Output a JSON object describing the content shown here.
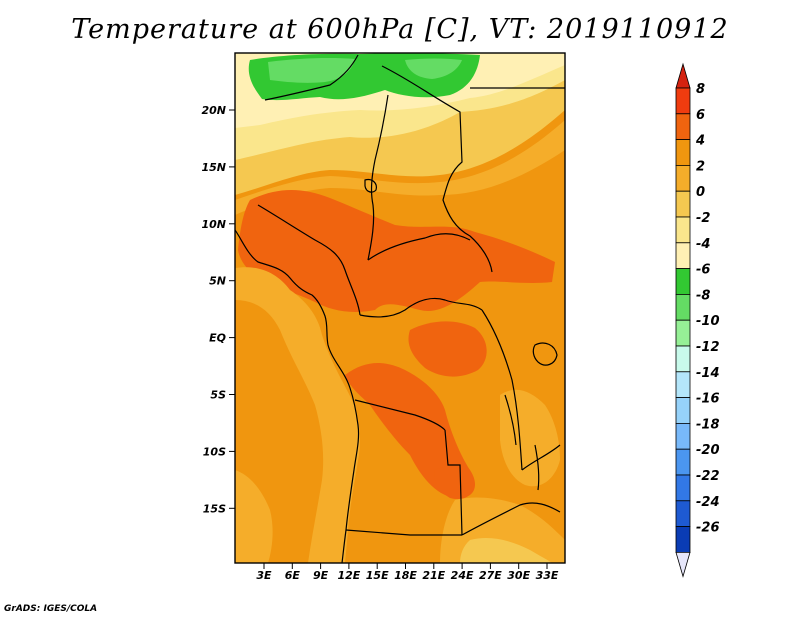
{
  "title": "Temperature at 600hPa [C], VT: 2019110912",
  "credit": "GrADS: IGES/COLA",
  "lat_labels": [
    "20N",
    "15N",
    "10N",
    "5N",
    "EQ",
    "5S",
    "10S",
    "15S"
  ],
  "lon_labels": [
    "3E",
    "6E",
    "9E",
    "12E",
    "15E",
    "18E",
    "21E",
    "24E",
    "27E",
    "30E",
    "33E"
  ],
  "colorbar": {
    "labels": [
      "8",
      "6",
      "4",
      "2",
      "0",
      "-2",
      "-4",
      "-6",
      "-8",
      "-10",
      "-12",
      "-14",
      "-16",
      "-18",
      "-20",
      "-22",
      "-24",
      "-26"
    ],
    "colors": [
      "#d42210",
      "#f03c0f",
      "#f0640f",
      "#f0960f",
      "#f5ad2a",
      "#f5c850",
      "#fae68c",
      "#fff0b4",
      "#32c832",
      "#64dc64",
      "#96f096",
      "#c8faeb",
      "#b4e6fa",
      "#96d2fa",
      "#78b9fa",
      "#4b96f0",
      "#3278e6",
      "#1e5ad2",
      "#0a3cb4",
      "#0a1e78"
    ]
  },
  "map": {
    "lon_range": [
      0,
      34
    ],
    "lat_range": [
      -20,
      24
    ],
    "palette": {
      "green": "#32c832",
      "light_green": "#64dc64",
      "pale_yellow": "#fff0b4",
      "light_yellow": "#fae68c",
      "yellow": "#f5c850",
      "light_orange": "#f5ad2a",
      "orange": "#f0960f",
      "dark_orange": "#f0640f",
      "red_orange": "#f03c0f"
    }
  }
}
